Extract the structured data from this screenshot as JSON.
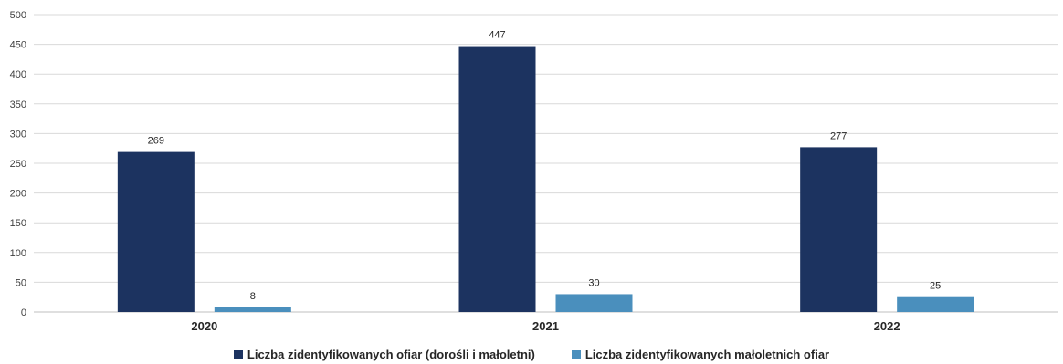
{
  "chart_data": {
    "type": "bar",
    "categories": [
      "2020",
      "2021",
      "2022"
    ],
    "series": [
      {
        "name": "Liczba zidentyfikowanych ofiar (dorośli i małoletni)",
        "values": [
          269,
          447,
          277
        ],
        "color": "#1c3360"
      },
      {
        "name": "Liczba zidentyfikowanych małoletnich ofiar",
        "values": [
          8,
          30,
          25
        ],
        "color": "#4a8fbd"
      }
    ],
    "ylim": [
      0,
      500
    ],
    "yticks": [
      0,
      50,
      100,
      150,
      200,
      250,
      300,
      350,
      400,
      450,
      500
    ],
    "grid": true,
    "legend": "bottom-center"
  }
}
